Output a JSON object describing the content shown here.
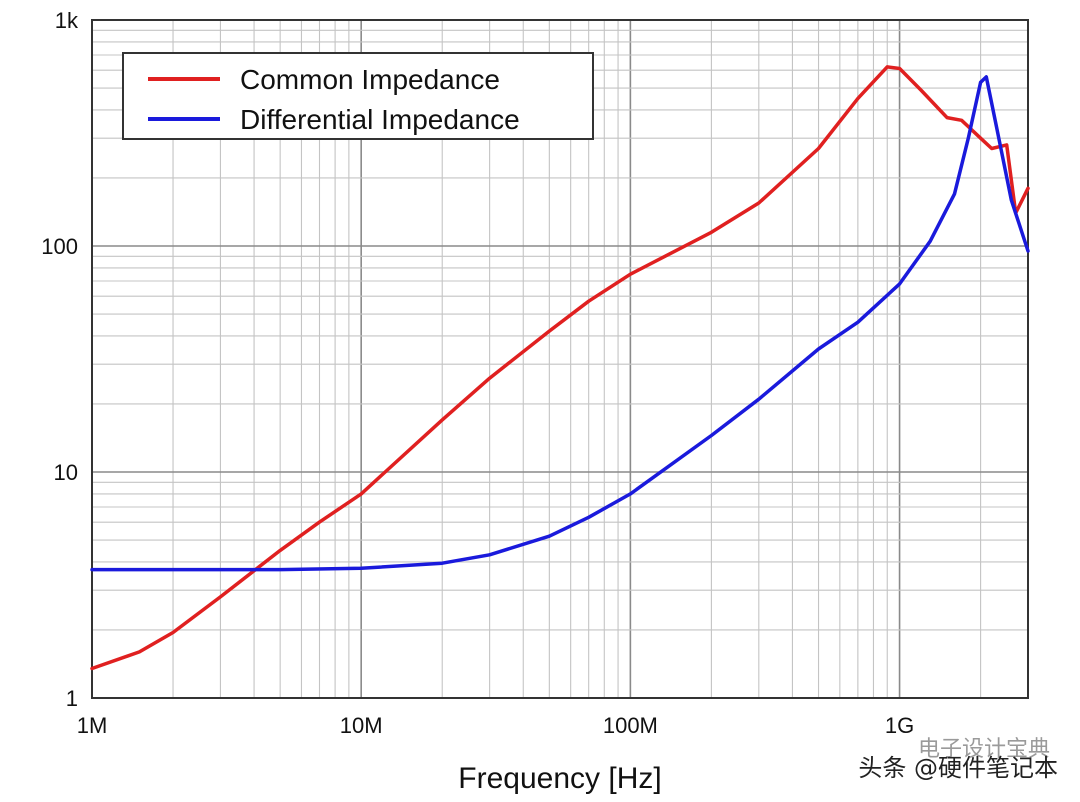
{
  "chart_data": {
    "type": "line",
    "xlabel": "Frequency [Hz]",
    "ylabel": "",
    "x_scale": "log",
    "y_scale": "log",
    "xlim": [
      1000000,
      3000000000
    ],
    "ylim": [
      1,
      1000
    ],
    "grid": true,
    "legend_position": "top-left",
    "x_ticks": [
      {
        "value": 1000000,
        "label": "1M"
      },
      {
        "value": 10000000,
        "label": "10M"
      },
      {
        "value": 100000000,
        "label": "100M"
      },
      {
        "value": 1000000000,
        "label": "1G"
      }
    ],
    "y_ticks": [
      {
        "value": 1,
        "label": "1"
      },
      {
        "value": 10,
        "label": "10"
      },
      {
        "value": 100,
        "label": "100"
      },
      {
        "value": 1000,
        "label": "1k"
      }
    ],
    "series": [
      {
        "name": "Common Impedance",
        "color": "#e02020",
        "x": [
          1000000,
          1500000,
          2000000,
          3000000,
          5000000,
          7000000,
          10000000,
          20000000,
          30000000,
          50000000,
          70000000,
          100000000,
          200000000,
          300000000,
          500000000,
          700000000,
          900000000,
          1000000000,
          1200000000,
          1500000000,
          1700000000,
          2000000000,
          2200000000,
          2500000000,
          2700000000,
          3000000000
        ],
        "y": [
          1.35,
          1.6,
          1.95,
          2.8,
          4.5,
          6.0,
          8.0,
          17.0,
          26.0,
          42.0,
          57.0,
          75.0,
          115.0,
          155.0,
          270.0,
          450.0,
          620.0,
          610.0,
          490.0,
          370.0,
          360.0,
          300.0,
          270.0,
          280.0,
          140.0,
          180.0
        ]
      },
      {
        "name": "Differential Impedance",
        "color": "#1a1adc",
        "x": [
          1000000,
          2000000,
          5000000,
          10000000,
          20000000,
          30000000,
          50000000,
          70000000,
          100000000,
          200000000,
          300000000,
          500000000,
          700000000,
          1000000000,
          1300000000,
          1600000000,
          1800000000,
          2000000000,
          2100000000,
          2300000000,
          2600000000,
          3000000000
        ],
        "y": [
          3.7,
          3.7,
          3.7,
          3.75,
          3.95,
          4.3,
          5.2,
          6.3,
          8.0,
          14.5,
          21.0,
          35.0,
          46.0,
          68.0,
          105.0,
          170.0,
          300.0,
          530.0,
          560.0,
          330.0,
          160.0,
          95.0
        ]
      }
    ]
  },
  "watermark": {
    "line1": "电子设计宝典",
    "line2": "头条 @硬件笔记本"
  }
}
